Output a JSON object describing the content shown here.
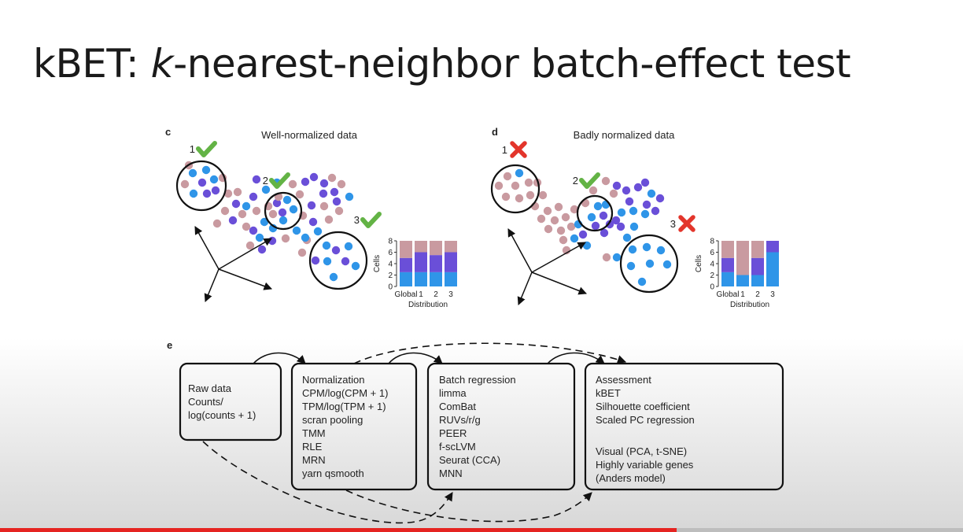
{
  "slide": {
    "title_prefix": "kBET: ",
    "title_k": "k",
    "title_rest": "-nearest-neighbor batch-effect test"
  },
  "panel_c": {
    "letter": "c",
    "title": "Well-normalized data",
    "markers": [
      {
        "number": "1",
        "status": "check"
      },
      {
        "number": "2",
        "status": "check"
      },
      {
        "number": "3",
        "status": "check"
      }
    ]
  },
  "panel_d": {
    "letter": "d",
    "title": "Badly normalized data",
    "markers": [
      {
        "number": "1",
        "status": "cross"
      },
      {
        "number": "2",
        "status": "check"
      },
      {
        "number": "3",
        "status": "cross"
      }
    ]
  },
  "panel_e": {
    "letter": "e",
    "boxes": [
      {
        "id": "raw",
        "lines": [
          "Raw data",
          "Counts/",
          "log(counts + 1)"
        ]
      },
      {
        "id": "normalization",
        "lines": [
          "Normalization",
          "CPM/log(CPM + 1)",
          "TPM/log(TPM + 1)",
          "scran pooling",
          "TMM",
          "RLE",
          "MRN",
          "yarn qsmooth"
        ]
      },
      {
        "id": "regression",
        "lines": [
          "Batch regression",
          "limma",
          "ComBat",
          "RUVs/r/g",
          "PEER",
          "f-scLVM",
          "Seurat (CCA)",
          "MNN"
        ]
      },
      {
        "id": "assessment",
        "lines": [
          "Assessment",
          "kBET",
          "Silhouette coefficient",
          "Scaled PC regression",
          "",
          "Visual (PCA, t-SNE)",
          "Highly variable genes",
          "(Anders model)"
        ]
      }
    ]
  },
  "colors": {
    "batch_pink": "#c99aa0",
    "batch_purple": "#6a4fd8",
    "batch_blue": "#2f95e8",
    "check_green": "#63b345",
    "cross_red": "#e3352b",
    "progress_red": "#e52421"
  },
  "chart_data": [
    {
      "type": "bar",
      "stacked": true,
      "panel": "c",
      "categories": [
        "Global",
        "1",
        "2",
        "3"
      ],
      "series": [
        {
          "values": [
            2.5,
            2.5,
            2.5,
            2.5
          ]
        },
        {
          "values": [
            2.5,
            3.5,
            3,
            3.5
          ]
        },
        {
          "values": [
            3,
            2,
            2.5,
            2
          ]
        }
      ],
      "xlabel": "Distribution",
      "ylabel": "Cells",
      "ylim": [
        0,
        8
      ],
      "yticks": [
        0,
        2,
        4,
        6,
        8
      ]
    },
    {
      "type": "bar",
      "stacked": true,
      "panel": "d",
      "categories": [
        "Global",
        "1",
        "2",
        "3"
      ],
      "series": [
        {
          "values": [
            2.5,
            2,
            2,
            6
          ]
        },
        {
          "values": [
            2.5,
            0,
            3,
            2
          ]
        },
        {
          "values": [
            3,
            6,
            3,
            0
          ]
        }
      ],
      "xlabel": "Distribution",
      "ylabel": "Cells",
      "ylim": [
        0,
        8
      ],
      "yticks": [
        0,
        2,
        4,
        6,
        8
      ]
    }
  ],
  "video": {
    "progress": 0.703
  }
}
